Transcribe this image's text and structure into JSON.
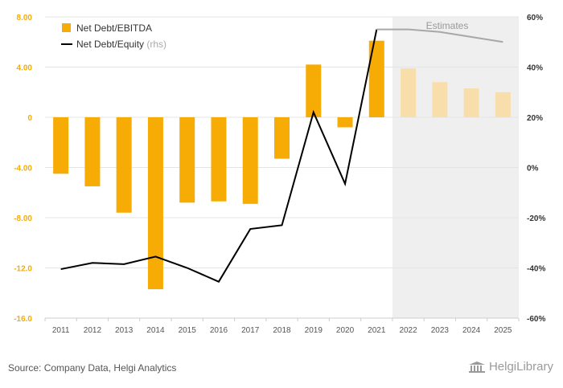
{
  "chart_data": {
    "type": "bar+line",
    "categories": [
      "2011",
      "2012",
      "2013",
      "2014",
      "2015",
      "2016",
      "2017",
      "2018",
      "2019",
      "2020",
      "2021",
      "2022",
      "2023",
      "2024",
      "2025"
    ],
    "estimate_start_index": 11,
    "series": [
      {
        "name": "Net Debt/EBITDA",
        "axis": "left",
        "type": "bar",
        "values": [
          -4.5,
          -5.5,
          -7.6,
          -13.7,
          -6.8,
          -6.7,
          -6.9,
          -3.3,
          4.2,
          -0.8,
          6.1,
          3.9,
          2.8,
          2.3,
          2.0
        ]
      },
      {
        "name": "Net Debt/Equity",
        "axis": "right",
        "type": "line",
        "unit": "%",
        "values": [
          -40.5,
          -38.0,
          -38.5,
          -35.5,
          -40.0,
          -45.5,
          -24.5,
          -23.0,
          22.0,
          -6.5,
          55.0,
          55.0,
          54.0,
          52.0,
          50.0
        ]
      }
    ],
    "left_axis": {
      "min": -16,
      "max": 8,
      "ticks": [
        "8.00",
        "4.00",
        "0",
        "-4.00",
        "-8.00",
        "-12.0",
        "-16.0"
      ],
      "tick_values": [
        8,
        4,
        0,
        -4,
        -8,
        -12,
        -16
      ]
    },
    "right_axis": {
      "min": -60,
      "max": 60,
      "ticks": [
        "60%",
        "40%",
        "20%",
        "0%",
        "-20%",
        "-40%",
        "-60%"
      ],
      "tick_values": [
        60,
        40,
        20,
        0,
        -20,
        -40,
        -60
      ]
    },
    "legend": [
      {
        "label": "Net Debt/EBITDA",
        "suffix": ""
      },
      {
        "label": "Net Debt/Equity",
        "suffix": "(rhs)"
      }
    ],
    "estimates_label": "Estimates"
  },
  "colors": {
    "bar": "#f7ac05",
    "bar_estimate": "#f8deab",
    "line": "#000000",
    "line_estimate": "#a8a8a8",
    "left_tick": "#f7ac05",
    "right_tick": "#333333",
    "estimate_band": "#efefef",
    "grid": "#e4e4e4"
  },
  "footer": {
    "source": "Source: Company Data, Helgi Analytics",
    "brand": "HelgiLibrary"
  }
}
